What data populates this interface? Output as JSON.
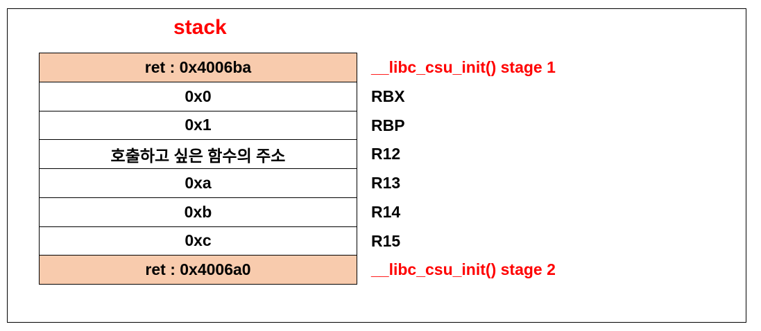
{
  "diagram": {
    "title": "stack",
    "colors": {
      "title": "#ff0000",
      "highlight_fill": "#f8cbad",
      "stage_label": "#ff0000",
      "text": "#000000",
      "border": "#000000"
    },
    "rows": [
      {
        "value": "ret : 0x4006ba",
        "label": "__libc_csu_init() stage 1",
        "highlight": true
      },
      {
        "value": "0x0",
        "label": "RBX",
        "highlight": false
      },
      {
        "value": "0x1",
        "label": "RBP",
        "highlight": false
      },
      {
        "value": "호출하고 싶은 함수의 주소",
        "label": "R12",
        "highlight": false
      },
      {
        "value": "0xa",
        "label": "R13",
        "highlight": false
      },
      {
        "value": "0xb",
        "label": "R14",
        "highlight": false
      },
      {
        "value": "0xc",
        "label": "R15",
        "highlight": false
      },
      {
        "value": "ret : 0x4006a0",
        "label": "__libc_csu_init() stage 2",
        "highlight": true
      }
    ]
  }
}
